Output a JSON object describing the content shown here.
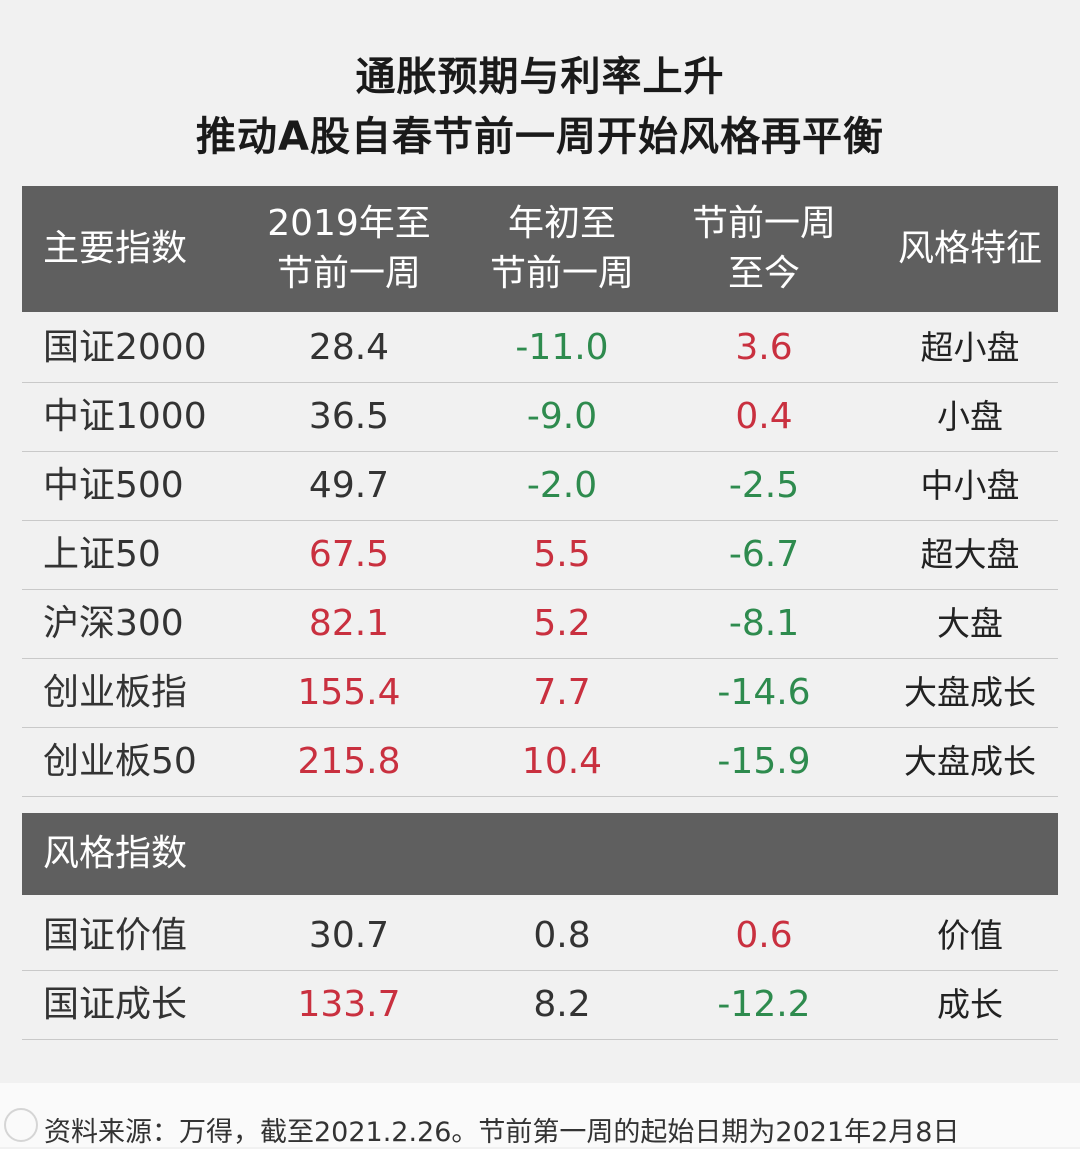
{
  "chart_data": {
    "type": "table",
    "title_lines": [
      "通胀预期与利率上升",
      "推动A股自春节前一周开始风格再平衡"
    ],
    "columns": [
      {
        "lines": [
          "主要指数"
        ]
      },
      {
        "lines": [
          "2019年至",
          "节前一周"
        ]
      },
      {
        "lines": [
          "年初至",
          "节前一周"
        ]
      },
      {
        "lines": [
          "节前一周",
          "至今"
        ]
      },
      {
        "lines": [
          "风格特征"
        ]
      }
    ],
    "main_rows": [
      {
        "name": "国证2000",
        "c1": "28.4",
        "c2": "-11.0",
        "c3": "3.6",
        "style": "超小盘"
      },
      {
        "name": "中证1000",
        "c1": "36.5",
        "c2": "-9.0",
        "c3": "0.4",
        "style": "小盘"
      },
      {
        "name": "中证500",
        "c1": "49.7",
        "c2": "-2.0",
        "c3": "-2.5",
        "style": "中小盘"
      },
      {
        "name": "上证50",
        "c1": "67.5",
        "c2": "5.5",
        "c3": "-6.7",
        "style": "超大盘"
      },
      {
        "name": "沪深300",
        "c1": "82.1",
        "c2": "5.2",
        "c3": "-8.1",
        "style": "大盘"
      },
      {
        "name": "创业板指",
        "c1": "155.4",
        "c2": "7.7",
        "c3": "-14.6",
        "style": "大盘成长"
      },
      {
        "name": "创业板50",
        "c1": "215.8",
        "c2": "10.4",
        "c3": "-15.9",
        "style": "大盘成长"
      }
    ],
    "style_section_label": "风格指数",
    "style_rows": [
      {
        "name": "国证价值",
        "c1": "30.7",
        "c2": "0.8",
        "c3": "0.6",
        "style": "价值"
      },
      {
        "name": "国证成长",
        "c1": "133.7",
        "c2": "8.2",
        "c3": "-12.2",
        "style": "成长"
      }
    ],
    "colors": {
      "positive": "#c9303f",
      "negative": "#2e8b4e",
      "neutral": "#333333",
      "header_bg": "#5f5f5f"
    }
  },
  "footer": {
    "source": "资料来源：万得，截至2021.2.26。节前第一周的起始日期为2021年2月8日"
  }
}
